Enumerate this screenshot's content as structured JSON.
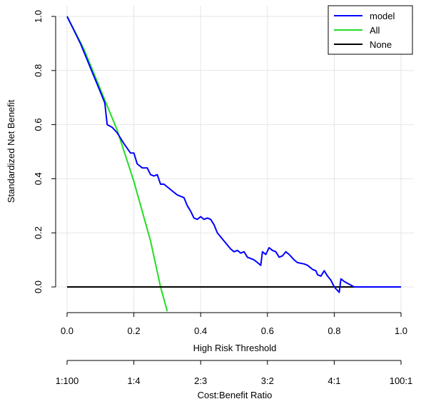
{
  "chart_data": {
    "type": "line",
    "xlabel": "High Risk Threshold",
    "ylabel": "Standardized Net Benefit",
    "xlim": [
      0.0,
      1.0
    ],
    "ylim": [
      -0.1,
      1.0
    ],
    "x_ticks": [
      "0.0",
      "0.2",
      "0.4",
      "0.6",
      "0.8",
      "1.0"
    ],
    "y_ticks": [
      "0.0",
      "0.2",
      "0.4",
      "0.6",
      "0.8",
      "1.0"
    ],
    "grid": true,
    "legend_position": "top-right",
    "secondary_axis": {
      "label": "Cost:Benefit Ratio",
      "ticks": [
        "1:100",
        "1:4",
        "2:3",
        "3:2",
        "4:1",
        "100:1"
      ]
    },
    "series": [
      {
        "name": "model",
        "color": "#0000ff",
        "points": [
          [
            0.0,
            1.0
          ],
          [
            0.02,
            0.95
          ],
          [
            0.04,
            0.9
          ],
          [
            0.06,
            0.84
          ],
          [
            0.08,
            0.78
          ],
          [
            0.1,
            0.72
          ],
          [
            0.113,
            0.68
          ],
          [
            0.12,
            0.6
          ],
          [
            0.135,
            0.59
          ],
          [
            0.15,
            0.57
          ],
          [
            0.17,
            0.53
          ],
          [
            0.19,
            0.495
          ],
          [
            0.2,
            0.495
          ],
          [
            0.21,
            0.455
          ],
          [
            0.225,
            0.44
          ],
          [
            0.24,
            0.44
          ],
          [
            0.25,
            0.415
          ],
          [
            0.26,
            0.41
          ],
          [
            0.27,
            0.415
          ],
          [
            0.28,
            0.38
          ],
          [
            0.29,
            0.38
          ],
          [
            0.31,
            0.36
          ],
          [
            0.33,
            0.34
          ],
          [
            0.35,
            0.33
          ],
          [
            0.36,
            0.3
          ],
          [
            0.37,
            0.28
          ],
          [
            0.38,
            0.255
          ],
          [
            0.39,
            0.25
          ],
          [
            0.4,
            0.26
          ],
          [
            0.41,
            0.25
          ],
          [
            0.42,
            0.255
          ],
          [
            0.43,
            0.25
          ],
          [
            0.44,
            0.23
          ],
          [
            0.45,
            0.2
          ],
          [
            0.47,
            0.17
          ],
          [
            0.49,
            0.14
          ],
          [
            0.5,
            0.13
          ],
          [
            0.51,
            0.135
          ],
          [
            0.52,
            0.125
          ],
          [
            0.53,
            0.13
          ],
          [
            0.54,
            0.11
          ],
          [
            0.56,
            0.1
          ],
          [
            0.57,
            0.09
          ],
          [
            0.58,
            0.08
          ],
          [
            0.585,
            0.13
          ],
          [
            0.595,
            0.12
          ],
          [
            0.605,
            0.145
          ],
          [
            0.615,
            0.135
          ],
          [
            0.625,
            0.13
          ],
          [
            0.635,
            0.11
          ],
          [
            0.645,
            0.115
          ],
          [
            0.655,
            0.13
          ],
          [
            0.665,
            0.12
          ],
          [
            0.68,
            0.1
          ],
          [
            0.69,
            0.09
          ],
          [
            0.71,
            0.085
          ],
          [
            0.72,
            0.08
          ],
          [
            0.735,
            0.065
          ],
          [
            0.745,
            0.06
          ],
          [
            0.75,
            0.045
          ],
          [
            0.76,
            0.04
          ],
          [
            0.77,
            0.06
          ],
          [
            0.78,
            0.04
          ],
          [
            0.79,
            0.025
          ],
          [
            0.8,
            0.0
          ],
          [
            0.815,
            -0.02
          ],
          [
            0.82,
            0.03
          ],
          [
            0.83,
            0.02
          ],
          [
            0.845,
            0.01
          ],
          [
            0.86,
            0.0
          ],
          [
            0.88,
            0.0
          ],
          [
            0.9,
            0.0
          ],
          [
            0.95,
            0.0
          ],
          [
            1.0,
            0.0
          ]
        ]
      },
      {
        "name": "All",
        "color": "#22dd22",
        "points": [
          [
            0.0,
            1.0
          ],
          [
            0.05,
            0.88
          ],
          [
            0.1,
            0.73
          ],
          [
            0.15,
            0.58
          ],
          [
            0.2,
            0.39
          ],
          [
            0.25,
            0.17
          ],
          [
            0.28,
            0.0
          ],
          [
            0.3,
            -0.09
          ]
        ]
      },
      {
        "name": "None",
        "color": "#000000",
        "points": [
          [
            0.0,
            0.0
          ],
          [
            1.0,
            0.0
          ]
        ]
      }
    ]
  }
}
